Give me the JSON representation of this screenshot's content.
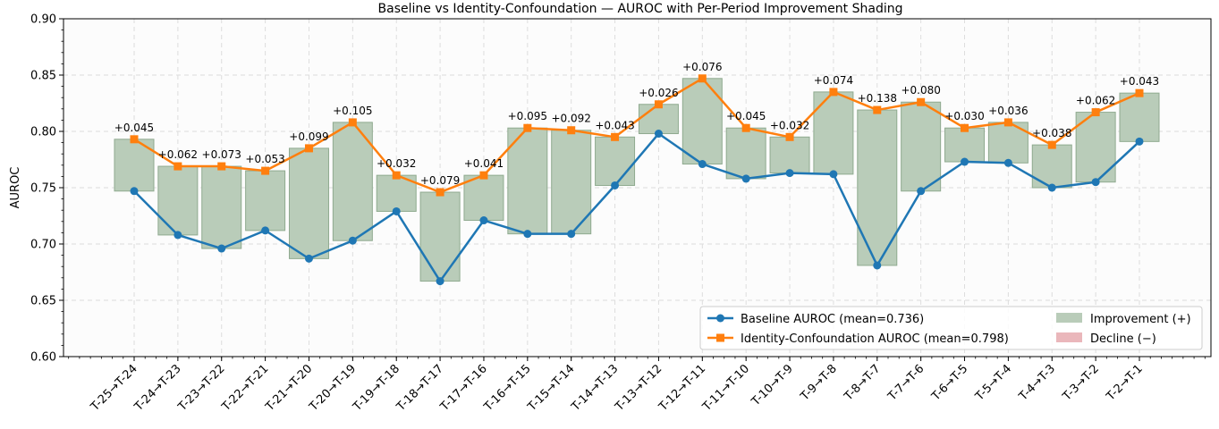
{
  "chart_data": {
    "type": "line",
    "title": "Baseline vs Identity-Confoundation — AUROC with Per-Period Improvement Shading",
    "xlabel": "",
    "ylabel": "AUROC",
    "ylim": [
      0.6,
      0.9
    ],
    "yticks": [
      "0.60",
      "0.65",
      "0.70",
      "0.75",
      "0.80",
      "0.85",
      "0.90"
    ],
    "grid": true,
    "categories": [
      "T-25→T-24",
      "T-24→T-23",
      "T-23→T-22",
      "T-22→T-21",
      "T-21→T-20",
      "T-20→T-19",
      "T-19→T-18",
      "T-18→T-17",
      "T-17→T-16",
      "T-16→T-15",
      "T-15→T-14",
      "T-14→T-13",
      "T-13→T-12",
      "T-12→T-11",
      "T-11→T-10",
      "T-10→T-9",
      "T-9→T-8",
      "T-8→T-7",
      "T-7→T-6",
      "T-6→T-5",
      "T-5→T-4",
      "T-4→T-3",
      "T-3→T-2",
      "T-2→T-1"
    ],
    "series": [
      {
        "name": "Baseline AUROC (mean=0.736)",
        "color": "#1f77b4",
        "marker": "circle",
        "values": [
          0.747,
          0.708,
          0.696,
          0.712,
          0.687,
          0.703,
          0.729,
          0.667,
          0.721,
          0.709,
          0.709,
          0.752,
          0.798,
          0.771,
          0.758,
          0.763,
          0.762,
          0.681,
          0.747,
          0.773,
          0.772,
          0.75,
          0.755,
          0.791
        ]
      },
      {
        "name": "Identity-Confoundation AUROC (mean=0.798)",
        "color": "#ff7f0e",
        "marker": "square",
        "values": [
          0.793,
          0.769,
          0.769,
          0.765,
          0.785,
          0.808,
          0.761,
          0.746,
          0.761,
          0.803,
          0.801,
          0.795,
          0.824,
          0.847,
          0.803,
          0.795,
          0.835,
          0.819,
          0.826,
          0.803,
          0.808,
          0.788,
          0.817,
          0.834
        ]
      }
    ],
    "improvement_labels": [
      "+0.045",
      "+0.062",
      "+0.073",
      "+0.053",
      "+0.099",
      "+0.105",
      "+0.032",
      "+0.079",
      "+0.041",
      "+0.095",
      "+0.092",
      "+0.043",
      "+0.026",
      "+0.076",
      "+0.045",
      "+0.032",
      "+0.074",
      "+0.138",
      "+0.080",
      "+0.030",
      "+0.036",
      "+0.038",
      "+0.062",
      "+0.043"
    ],
    "legend": {
      "position": "bottom-right",
      "entries": [
        {
          "label": "Baseline AUROC (mean=0.736)",
          "kind": "line",
          "color": "#1f77b4"
        },
        {
          "label": "Identity-Confoundation AUROC (mean=0.798)",
          "kind": "line",
          "color": "#ff7f0e"
        },
        {
          "label": "Improvement (+)",
          "kind": "patch",
          "color": "#b9ccb9"
        },
        {
          "label": "Decline (−)",
          "kind": "patch",
          "color": "#eab7bb"
        }
      ]
    },
    "colors": {
      "improvement_fill": "#b9ccb9",
      "improvement_edge": "#8faa8f",
      "decline_fill": "#eab7bb",
      "grid": "#dddddd"
    }
  }
}
